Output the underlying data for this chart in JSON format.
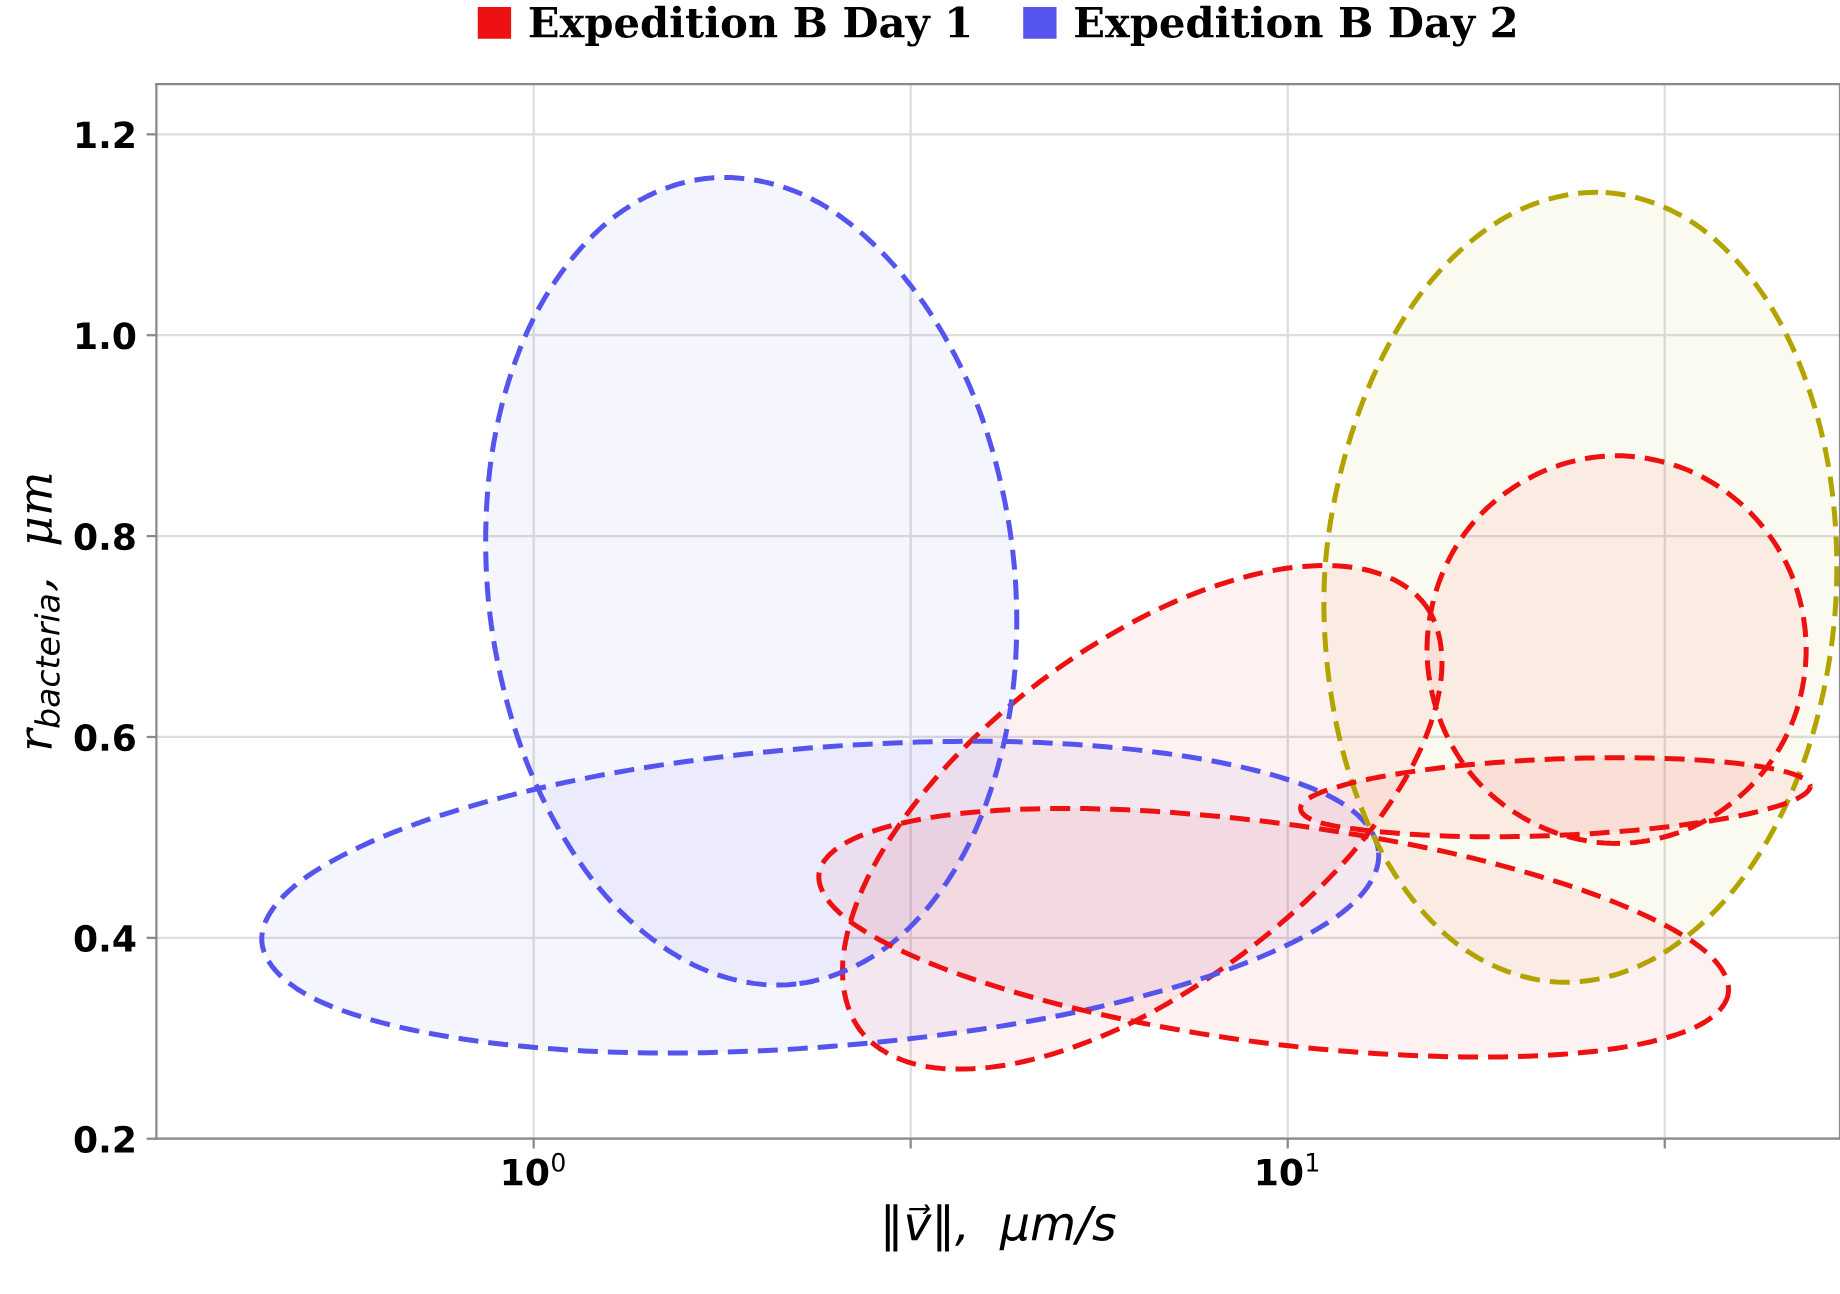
{
  "chart_data": {
    "type": "area",
    "xlabel": "‖v⃗‖,  μm/s",
    "ylabel": "r$_{bacteria}$,  μm",
    "log": "x",
    "grid": true,
    "legend": "top",
    "marker": "none",
    "line_style": "dashed",
    "xlim": [
      0.316,
      54
    ],
    "xticks": [
      {
        "value": 1,
        "label": "10$^{0}$"
      },
      {
        "value": 3.162,
        "label": null
      },
      {
        "value": 10,
        "label": "10$^{1}$"
      },
      {
        "value": 31.62,
        "label": null
      }
    ],
    "ylim": [
      0.2,
      1.25
    ],
    "yticks": [
      0.2,
      0.4,
      0.6,
      0.8,
      {
        "value": 1,
        "label": "1.0"
      },
      1.2
    ],
    "series": [
      {
        "name": "Expedition B Day 1",
        "color": "#ee1111",
        "x": [
          15.2,
          16.0,
          14.7,
          11.9,
          8.75,
          6.15,
          4.35,
          3.26,
          2.71,
          2.57,
          2.8,
          3.46,
          4.69,
          6.68,
          9.45,
          12.6,
          15.2
        ],
        "values": [
          0.732,
          0.664,
          0.574,
          0.476,
          0.385,
          0.314,
          0.275,
          0.273,
          0.308,
          0.376,
          0.466,
          0.564,
          0.655,
          0.726,
          0.765,
          0.767,
          0.732
        ]
      },
      {
        "name": "Expedition B Day 2",
        "color": "#5555ee",
        "x": [
          2.23,
          1.63,
          1.22,
          0.98,
          0.874,
          0.88,
          1.0,
          1.26,
          1.69,
          2.32,
          3.09,
          3.85,
          4.32,
          4.29,
          3.77,
          3.0,
          2.23
        ],
        "values": [
          0.354,
          0.373,
          0.45,
          0.574,
          0.725,
          0.881,
          1.017,
          1.114,
          1.156,
          1.137,
          1.059,
          0.936,
          0.784,
          0.629,
          0.492,
          0.396,
          0.354
        ]
      },
      {
        "color": "#5555ee",
        "x": [
          13.2,
          11.8,
          8.24,
          4.78,
          2.49,
          1.29,
          0.738,
          0.504,
          0.436,
          0.49,
          0.701,
          1.21,
          2.32,
          4.47,
          7.83,
          11.5,
          13.2
        ],
        "values": [
          0.485,
          0.425,
          0.367,
          0.32,
          0.292,
          0.286,
          0.304,
          0.342,
          0.396,
          0.456,
          0.514,
          0.561,
          0.589,
          0.595,
          0.577,
          0.539,
          0.485
        ]
      },
      {
        "color": "#ee1111",
        "x": [
          38.4,
          34.0,
          24.8,
          15.7,
          9.17,
          5.41,
          3.48,
          2.61,
          2.39,
          2.7,
          3.7,
          5.86,
          10.0,
          17.0,
          26.4,
          35.2,
          38.4
        ],
        "values": [
          0.345,
          0.308,
          0.286,
          0.282,
          0.296,
          0.327,
          0.37,
          0.418,
          0.464,
          0.501,
          0.524,
          0.528,
          0.513,
          0.482,
          0.439,
          0.391,
          0.345
        ]
      },
      {
        "color": "#b3a300",
        "x": [
          26.4,
          35.4,
          44.8,
          51.7,
          53.3,
          48.8,
          40.2,
          30.7,
          22.7,
          16.9,
          13.4,
          11.6,
          11.2,
          12.3,
          14.9,
          19.5,
          26.4
        ],
        "values": [
          1.142,
          1.106,
          1.015,
          0.884,
          0.733,
          0.584,
          0.46,
          0.38,
          0.356,
          0.392,
          0.482,
          0.613,
          0.765,
          0.914,
          1.038,
          1.118,
          1.142
        ]
      },
      {
        "color": "#ee1111",
        "x": [
          27.3,
          21.9,
          18.1,
          16.0,
          15.3,
          16.0,
          18.1,
          21.9,
          27.3,
          34.1,
          41.1,
          46.6,
          48.7,
          46.6,
          41.1,
          34.1,
          27.3
        ],
        "values": [
          0.494,
          0.509,
          0.551,
          0.613,
          0.687,
          0.761,
          0.823,
          0.865,
          0.88,
          0.865,
          0.823,
          0.761,
          0.687,
          0.613,
          0.551,
          0.509,
          0.494
        ]
      },
      {
        "color": "#ee1111",
        "x": [
          49.3,
          46.5,
          39.4,
          30.6,
          22.7,
          16.9,
          13.1,
          11.0,
          10.4,
          11.0,
          13.0,
          16.7,
          22.5,
          30.3,
          39.1,
          46.4,
          49.3
        ],
        "values": [
          0.551,
          0.536,
          0.521,
          0.509,
          0.502,
          0.501,
          0.506,
          0.515,
          0.529,
          0.544,
          0.559,
          0.571,
          0.578,
          0.579,
          0.574,
          0.564,
          0.551
        ]
      }
    ]
  }
}
